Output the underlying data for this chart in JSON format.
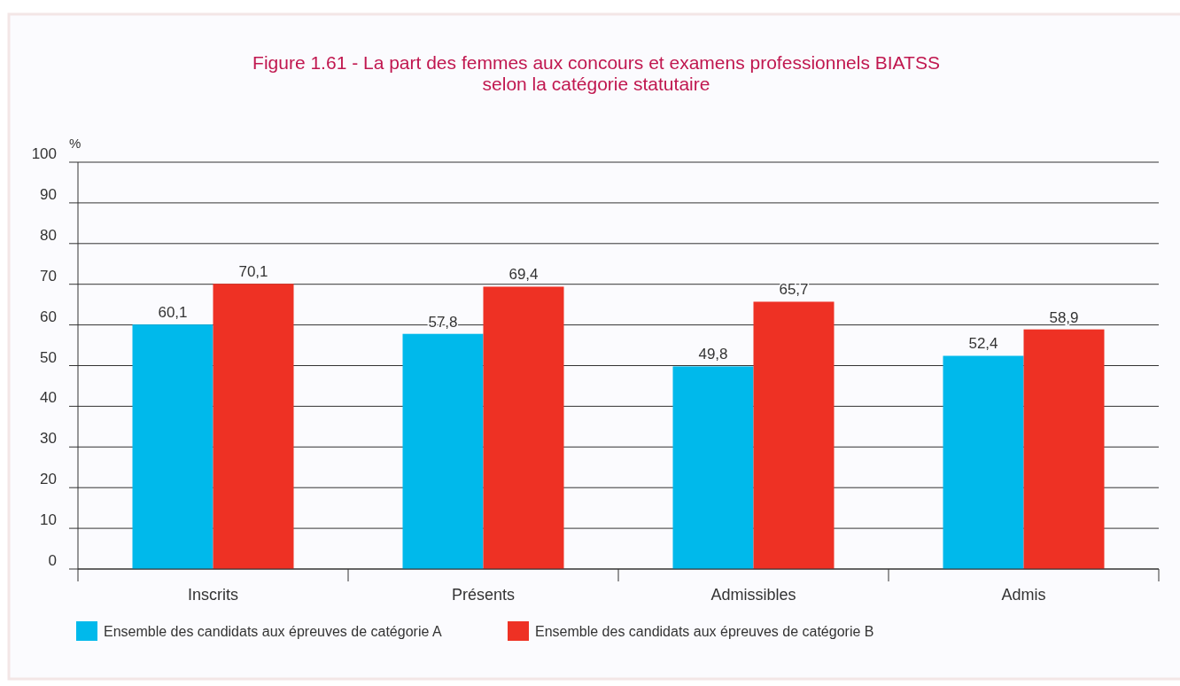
{
  "chart_data": {
    "type": "bar",
    "title": "Figure 1.61 - La part des femmes aux concours et examens professionnels BIATSS\nselon la catégorie statutaire",
    "ylabel": "%",
    "categories": [
      "Inscrits",
      "Présents",
      "Admissibles",
      "Admis"
    ],
    "series": [
      {
        "name": "Ensemble des candidats aux épreuves de catégorie A",
        "color": "#00b9eb",
        "values": [
          60.1,
          57.8,
          49.8,
          52.4
        ],
        "value_labels": [
          "60,1",
          "57,8",
          "49,8",
          "52,4"
        ]
      },
      {
        "name": "Ensemble des candidats aux épreuves de catégorie B",
        "color": "#ee3124",
        "values": [
          70.1,
          69.4,
          65.7,
          58.9
        ],
        "value_labels": [
          "70,1",
          "69,4",
          "65,7",
          "58,9"
        ]
      }
    ],
    "ylim": [
      0,
      100
    ],
    "yticks": [
      0,
      10,
      20,
      30,
      40,
      50,
      60,
      70,
      80,
      90,
      100
    ],
    "grid": "y",
    "legend": "bottom left"
  }
}
